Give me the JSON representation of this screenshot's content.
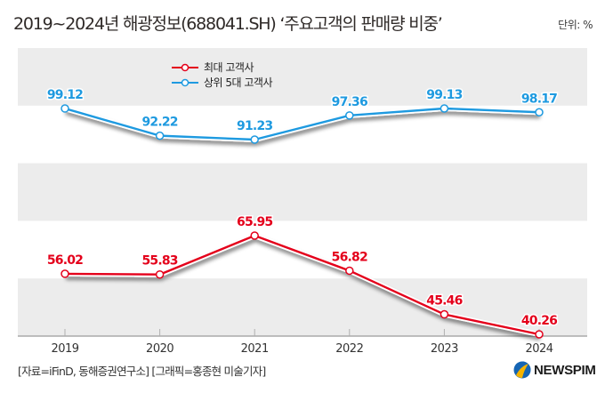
{
  "header": {
    "title": "2019~2024년 해광정보(688041.SH) ‘주요고객의 판매량 비중’",
    "unit": "단위: %"
  },
  "footer": {
    "source": "[자료=iFinD, 동해증권연구소] [그래픽=홍종현 미술기자]",
    "logo_text": "NEWSPIM"
  },
  "colors": {
    "top_customer": "#e4001b",
    "top5_customers": "#1e9ae0",
    "band": "#ececec",
    "axis": "#9a9a9a"
  },
  "chart_data": {
    "type": "line",
    "title": "2019~2024년 해광정보(688041.SH) ‘주요고객의 판매량 비중’",
    "unit": "단위: %",
    "categories": [
      "2019",
      "2020",
      "2021",
      "2022",
      "2023",
      "2024"
    ],
    "legend_position": "top-left",
    "series": [
      {
        "name": "최대 고객사",
        "values": [
          56.02,
          55.83,
          65.95,
          56.82,
          45.46,
          40.26
        ],
        "labels": [
          "56.02",
          "55.83",
          "65.95",
          "56.82",
          "45.46",
          "40.26"
        ]
      },
      {
        "name": "상위 5대 고객사",
        "values": [
          99.12,
          92.22,
          91.23,
          97.36,
          99.13,
          98.17
        ],
        "labels": [
          "99.12",
          "92.22",
          "91.23",
          "97.36",
          "99.13",
          "98.17"
        ]
      }
    ],
    "grid": "alternating-bands"
  }
}
